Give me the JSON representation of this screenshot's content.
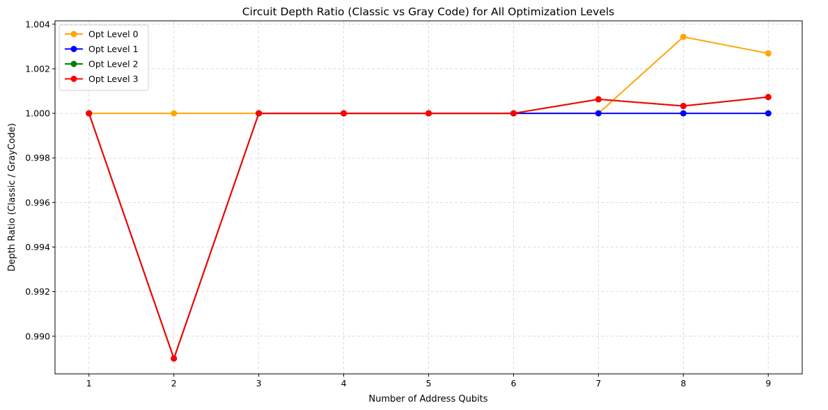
{
  "chart_data": {
    "type": "line",
    "title": "Circuit Depth Ratio (Classic vs Gray Code) for All Optimization Levels",
    "xlabel": "Number of Address Qubits",
    "ylabel": "Depth Ratio (Classic / GrayCode)",
    "x": [
      1,
      2,
      3,
      4,
      5,
      6,
      7,
      8,
      9
    ],
    "xlim": [
      0.6,
      9.4
    ],
    "ylim": [
      0.98831,
      1.00415
    ],
    "xticks": [
      1,
      2,
      3,
      4,
      5,
      6,
      7,
      8,
      9
    ],
    "xtick_labels": [
      "1",
      "2",
      "3",
      "4",
      "5",
      "6",
      "7",
      "8",
      "9"
    ],
    "yticks": [
      0.99,
      0.992,
      0.994,
      0.996,
      0.998,
      1.0,
      1.002,
      1.004
    ],
    "ytick_labels": [
      "0.990",
      "0.992",
      "0.994",
      "0.996",
      "0.998",
      "1.000",
      "1.002",
      "1.004"
    ],
    "grid": true,
    "legend_position": "top-left",
    "series": [
      {
        "name": "Opt Level 0",
        "color": "#ffa500",
        "values": [
          1.0,
          1.0,
          1.0,
          1.0,
          1.0,
          1.0,
          1.0,
          1.00343,
          1.00269
        ]
      },
      {
        "name": "Opt Level 1",
        "color": "#0000ff",
        "values": [
          1.0,
          0.989,
          1.0,
          1.0,
          1.0,
          1.0,
          1.0,
          1.0,
          1.0
        ]
      },
      {
        "name": "Opt Level 2",
        "color": "#008000",
        "values": [
          1.0,
          0.989,
          1.0,
          1.0,
          1.0,
          1.0,
          1.00063,
          1.00033,
          1.00073
        ]
      },
      {
        "name": "Opt Level 3",
        "color": "#ff0000",
        "values": [
          1.0,
          0.989,
          1.0,
          1.0,
          1.0,
          1.0,
          1.00063,
          1.00033,
          1.00073
        ]
      }
    ]
  }
}
